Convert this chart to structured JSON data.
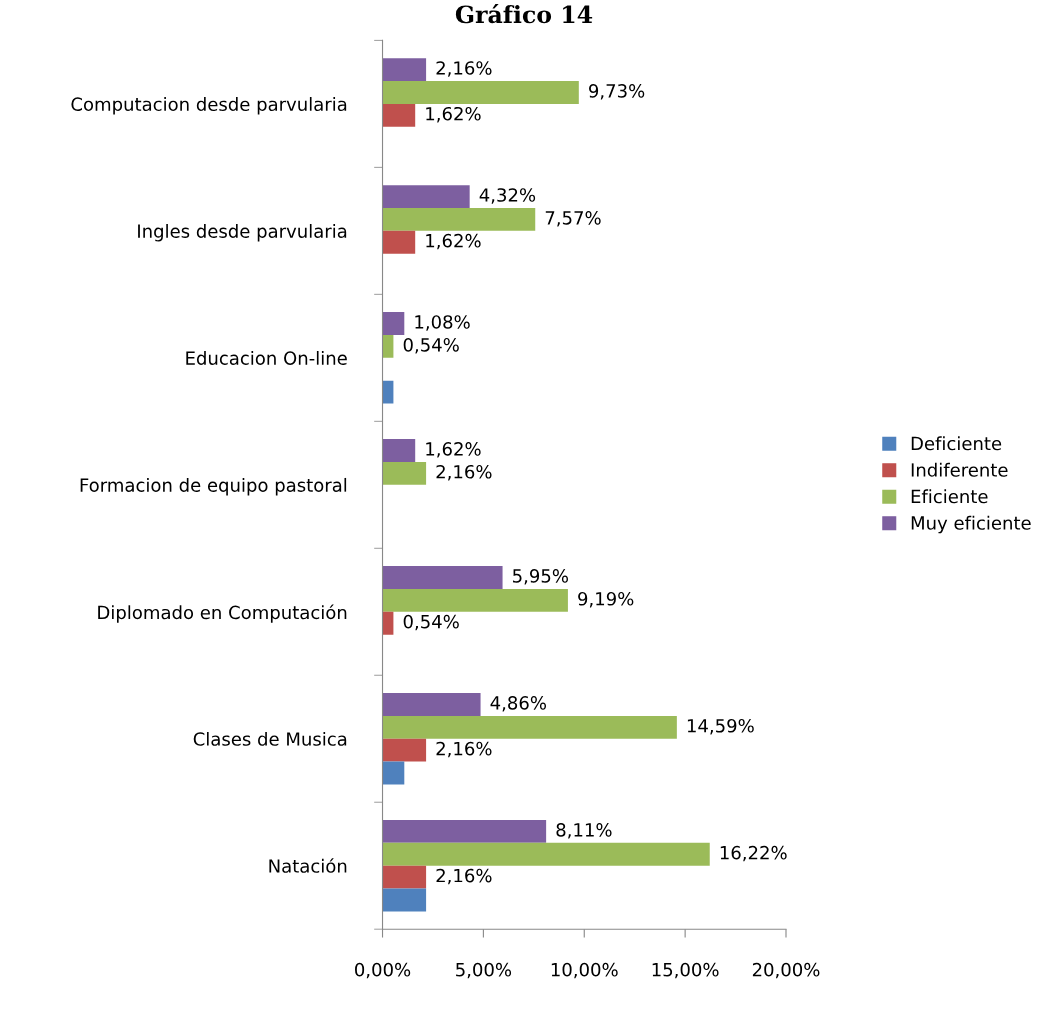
{
  "chart_data": {
    "type": "bar",
    "orientation": "horizontal",
    "title": "Gráfico 14",
    "categories": [
      "Computacion desde parvularia",
      "Ingles desde parvularia",
      "Educacion On-line",
      "Formacion de equipo pastoral",
      "Diplomado en Computación",
      "Clases de Musica",
      "Natación"
    ],
    "series": [
      {
        "name": "Muy eficiente",
        "color": "#7d5fa0",
        "values": [
          2.16,
          4.32,
          1.08,
          1.62,
          5.95,
          4.86,
          8.11
        ],
        "value_labels": [
          "2,16%",
          "4,32%",
          "1,08%",
          "1,62%",
          "5,95%",
          "4,86%",
          "8,11%"
        ]
      },
      {
        "name": "Eficiente",
        "color": "#9bbb59",
        "values": [
          9.73,
          7.57,
          0.54,
          2.16,
          9.19,
          14.59,
          16.22
        ],
        "value_labels": [
          "9,73%",
          "7,57%",
          "0,54%",
          "2,16%",
          "9,19%",
          "14,59%",
          "16,22%"
        ]
      },
      {
        "name": "Indiferente",
        "color": "#c0504d",
        "values": [
          1.62,
          1.62,
          null,
          null,
          0.54,
          2.16,
          2.16
        ],
        "value_labels": [
          "1,62%",
          "1,62%",
          null,
          null,
          "0,54%",
          "2,16%",
          "2,16%"
        ]
      },
      {
        "name": "Deficiente",
        "color": "#4f81bd",
        "values": [
          null,
          null,
          0.54,
          null,
          null,
          1.08,
          2.16
        ],
        "value_labels": [
          null,
          null,
          null,
          null,
          null,
          null,
          null
        ]
      }
    ],
    "xlim": [
      0,
      20
    ],
    "xticks": [
      {
        "value": 0,
        "label": "0,00%"
      },
      {
        "value": 5,
        "label": "5,00%"
      },
      {
        "value": 10,
        "label": "10,00%"
      },
      {
        "value": 15,
        "label": "15,00%"
      },
      {
        "value": 20,
        "label": "20,00%"
      }
    ],
    "grid": false,
    "legend": "right"
  }
}
